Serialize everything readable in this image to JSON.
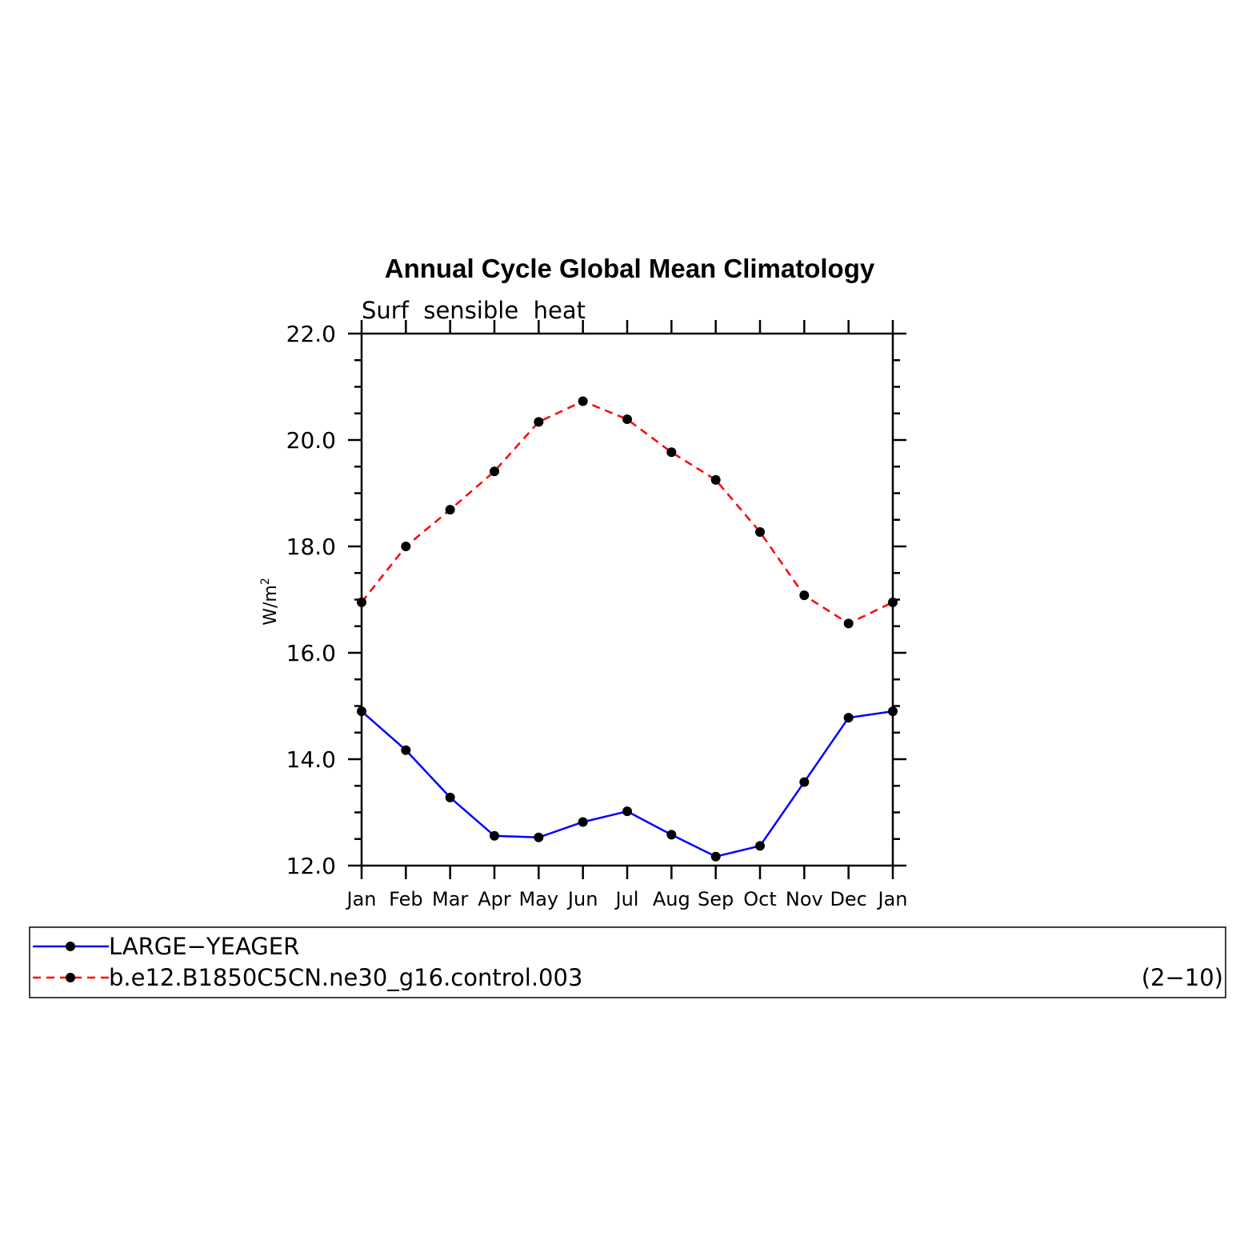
{
  "chart_data": {
    "type": "line",
    "title": "Annual Cycle Global Mean Climatology",
    "subtitle": "Surf  sensible  heat",
    "ylabel": "W/m",
    "ylabel_superscript": "2",
    "ylim": [
      12,
      22
    ],
    "yticks": [
      "12.0",
      "14.0",
      "16.0",
      "18.0",
      "20.0",
      "22.0"
    ],
    "categories": [
      "Jan",
      "Feb",
      "Mar",
      "Apr",
      "May",
      "Jun",
      "Jul",
      "Aug",
      "Sep",
      "Oct",
      "Nov",
      "Dec",
      "Jan"
    ],
    "grid": false,
    "legend_position": "bottom",
    "series": [
      {
        "name": "LARGE−YEAGER",
        "color": "#0000ff",
        "dash": "solid",
        "values": [
          14.9,
          14.17,
          13.28,
          12.56,
          12.53,
          12.82,
          13.02,
          12.58,
          12.17,
          12.37,
          13.57,
          14.78,
          14.9
        ]
      },
      {
        "name": "b.e12.B1850C5CN.ne30_g16.control.003",
        "color": "#ff0000",
        "dash": "dashed",
        "values": [
          16.95,
          18.0,
          18.69,
          19.41,
          20.34,
          20.73,
          20.39,
          19.77,
          19.25,
          18.27,
          17.08,
          16.55,
          16.95
        ]
      }
    ],
    "annotation": "(2−10)"
  }
}
